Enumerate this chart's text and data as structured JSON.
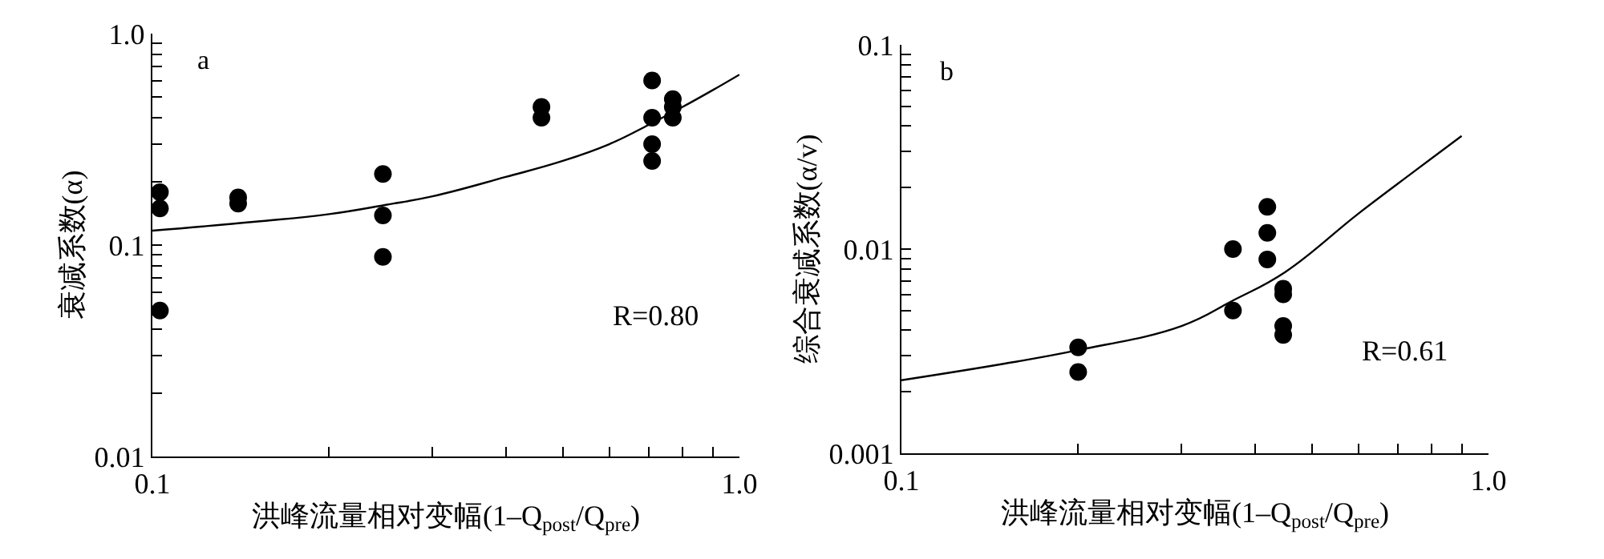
{
  "chart_data": [
    {
      "type": "scatter",
      "ylabel": "衰减系数(α)",
      "xlabel": "洪峰流量相对变幅(1–Q$_{post}$/Q$_{pre}$)",
      "annotations": [
        "a",
        "R=0.80"
      ],
      "log": "xy",
      "grid": false,
      "xlim": [
        0.1,
        1.0
      ],
      "xticks": [
        {
          "value": 0.1,
          "label": "0.1"
        },
        {
          "value": 0.2,
          "label": null
        },
        {
          "value": 0.3,
          "label": null
        },
        {
          "value": 0.4,
          "label": null
        },
        {
          "value": 0.5,
          "label": null
        },
        {
          "value": 0.6,
          "label": null
        },
        {
          "value": 0.7,
          "label": null
        },
        {
          "value": 0.8,
          "label": null
        },
        {
          "value": 0.9,
          "label": null
        },
        {
          "value": 1,
          "label": "1.0"
        }
      ],
      "ylim": [
        0.01,
        1.0
      ],
      "yticks": [
        0.01,
        {
          "value": 0.02,
          "label": null
        },
        {
          "value": 0.03,
          "label": null
        },
        {
          "value": 0.04,
          "label": null
        },
        {
          "value": 0.05,
          "label": null
        },
        {
          "value": 0.06,
          "label": null
        },
        {
          "value": 0.07,
          "label": null
        },
        {
          "value": 0.08,
          "label": null
        },
        {
          "value": 0.09,
          "label": null
        },
        0.1,
        {
          "value": 0.2,
          "label": null
        },
        {
          "value": 0.3,
          "label": null
        },
        {
          "value": 0.4,
          "label": null
        },
        {
          "value": 0.5,
          "label": null
        },
        {
          "value": 0.6,
          "label": null
        },
        {
          "value": 0.7,
          "label": null
        },
        {
          "value": 0.8,
          "label": null
        },
        {
          "value": 0.9,
          "label": null
        },
        {
          "value": 1,
          "label": "1.0"
        }
      ],
      "series": [
        {
          "marker": "circle",
          "color": "#000000",
          "x": [
            0.103,
            0.103,
            0.103,
            0.14,
            0.14,
            0.247,
            0.247,
            0.247,
            0.46,
            0.46,
            0.71,
            0.71,
            0.71,
            0.71,
            0.77,
            0.77,
            0.77
          ],
          "values": [
            0.178,
            0.149,
            0.049,
            0.168,
            0.157,
            0.217,
            0.138,
            0.088,
            0.45,
            0.4,
            0.6,
            0.4,
            0.3,
            0.25,
            0.49,
            0.45,
            0.4
          ]
        },
        {
          "type": "line",
          "marker": "none",
          "color": "#000000",
          "line_style": "solid",
          "x": [
            0.1,
            0.15,
            0.2,
            0.25,
            0.3,
            0.4,
            0.5,
            0.6,
            0.7,
            0.8,
            0.9,
            1.0
          ],
          "values": [
            0.117,
            0.129,
            0.14,
            0.155,
            0.17,
            0.21,
            0.25,
            0.3,
            0.37,
            0.45,
            0.54,
            0.64
          ]
        }
      ]
    },
    {
      "type": "scatter",
      "ylabel": "综合衰减系数(α/v)",
      "xlabel": "洪峰流量相对变幅(1–Q$_{post}$/Q$_{pre}$)",
      "annotations": [
        "b",
        "R=0.61"
      ],
      "log": "xy",
      "grid": false,
      "xlim": [
        0.1,
        1.0
      ],
      "xticks": [
        {
          "value": 0.1,
          "label": "0.1"
        },
        {
          "value": 0.2,
          "label": null
        },
        {
          "value": 0.3,
          "label": null
        },
        {
          "value": 0.4,
          "label": null
        },
        {
          "value": 0.5,
          "label": null
        },
        {
          "value": 0.6,
          "label": null
        },
        {
          "value": 0.7,
          "label": null
        },
        {
          "value": 0.8,
          "label": null
        },
        {
          "value": 0.9,
          "label": null
        },
        {
          "value": 1,
          "label": "1.0"
        }
      ],
      "ylim": [
        0.001,
        0.1
      ],
      "yticks": [
        0.001,
        {
          "value": 0.002,
          "label": null
        },
        {
          "value": 0.003,
          "label": null
        },
        {
          "value": 0.004,
          "label": null
        },
        {
          "value": 0.005,
          "label": null
        },
        {
          "value": 0.006,
          "label": null
        },
        {
          "value": 0.007,
          "label": null
        },
        {
          "value": 0.008,
          "label": null
        },
        {
          "value": 0.009,
          "label": null
        },
        0.01,
        {
          "value": 0.02,
          "label": null
        },
        {
          "value": 0.03,
          "label": null
        },
        {
          "value": 0.04,
          "label": null
        },
        {
          "value": 0.05,
          "label": null
        },
        {
          "value": 0.06,
          "label": null
        },
        {
          "value": 0.07,
          "label": null
        },
        {
          "value": 0.08,
          "label": null
        },
        {
          "value": 0.09,
          "label": null
        },
        0.1
      ],
      "series": [
        {
          "marker": "circle",
          "color": "#000000",
          "x": [
            0.2,
            0.2,
            0.367,
            0.367,
            0.42,
            0.42,
            0.42,
            0.447,
            0.447,
            0.447,
            0.447
          ],
          "values": [
            0.0033,
            0.0025,
            0.01,
            0.005,
            0.0161,
            0.012,
            0.0089,
            0.0064,
            0.006,
            0.0042,
            0.0038
          ]
        },
        {
          "type": "line",
          "marker": "none",
          "color": "#000000",
          "line_style": "solid",
          "x": [
            0.1,
            0.15,
            0.2,
            0.3,
            0.367,
            0.45,
            0.6,
            0.75,
            0.9
          ],
          "values": [
            0.00228,
            0.00275,
            0.0032,
            0.0042,
            0.0056,
            0.0077,
            0.0149,
            0.0242,
            0.0358
          ]
        }
      ]
    }
  ]
}
